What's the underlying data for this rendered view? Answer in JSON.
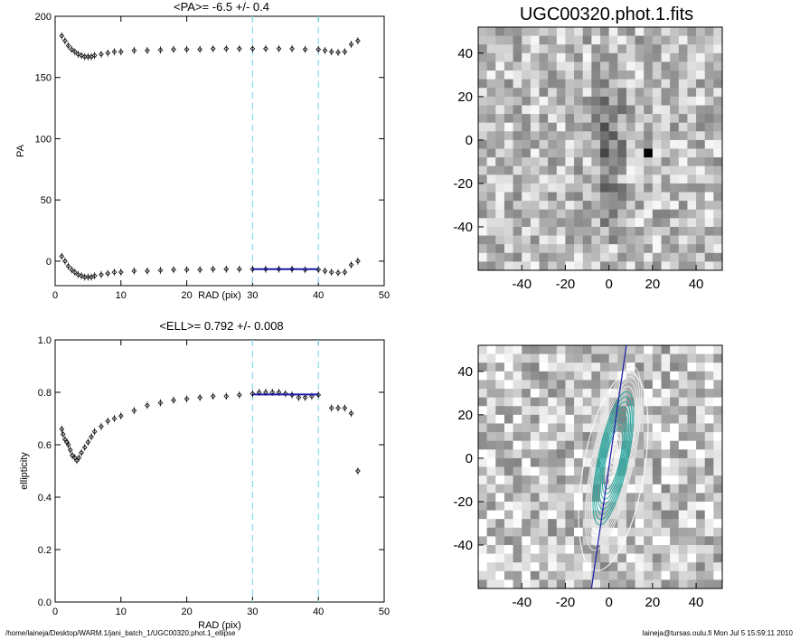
{
  "footer": {
    "path": "/home/laineja/Desktop/WARM.1/jani_batch_1/UGC00320.phot.1_ellipse",
    "user_stamp": "laineja@tursas.oulu.fi  Mon Jul  5 15:59:11 2010"
  },
  "chart_data": [
    {
      "type": "scatter",
      "title": "<PA>=  -6.5 +/-   0.4",
      "xlabel": "RAD (pix)",
      "ylabel": "PA",
      "xlim": [
        0,
        50
      ],
      "ylim": [
        -20,
        200
      ],
      "xticks": [
        0,
        10,
        20,
        30,
        40,
        50
      ],
      "yticks": [
        0,
        50,
        100,
        150,
        200
      ],
      "vlines": [
        30,
        40
      ],
      "series": [
        {
          "role": "points",
          "x": [
            1,
            1.5,
            2,
            2.5,
            3,
            3.5,
            4,
            4.5,
            5,
            5.5,
            6,
            7,
            8,
            9,
            10,
            12,
            14,
            16,
            18,
            20,
            22,
            24,
            26,
            28,
            30,
            32,
            34,
            36,
            38,
            40,
            41,
            42,
            43,
            44,
            45,
            46
          ],
          "y": [
            4,
            0,
            -4,
            -7,
            -9,
            -11,
            -12,
            -13,
            -13,
            -13,
            -12,
            -11,
            -10,
            -9,
            -9,
            -8,
            -8,
            -7.5,
            -7,
            -7,
            -7,
            -6.5,
            -6.5,
            -6.5,
            -6.5,
            -6.5,
            -6.5,
            -6.5,
            -7,
            -7,
            -8,
            -9,
            -9.5,
            -9,
            -3,
            0
          ]
        },
        {
          "role": "points",
          "x": [
            1,
            1.5,
            2,
            2.5,
            3,
            3.5,
            4,
            4.5,
            5,
            5.5,
            6,
            7,
            8,
            9,
            10,
            12,
            14,
            16,
            18,
            20,
            22,
            24,
            26,
            28,
            30,
            32,
            34,
            36,
            38,
            40,
            41,
            42,
            43,
            44,
            45,
            46
          ],
          "y": [
            184,
            180,
            176,
            173,
            171,
            169,
            168,
            167,
            167,
            167,
            168,
            169,
            170,
            171,
            171,
            172,
            172,
            172.5,
            173,
            173,
            173,
            173.5,
            173.5,
            173.5,
            173.5,
            173.5,
            173.5,
            173.5,
            173,
            173,
            172,
            171,
            170.5,
            171,
            177,
            180
          ]
        },
        {
          "role": "fit",
          "x": [
            30,
            40
          ],
          "y": [
            -6.5,
            -6.5
          ]
        }
      ]
    },
    {
      "type": "scatter",
      "title": "<ELL>= 0.792 +/-  0.008",
      "xlabel": "RAD (pix)",
      "ylabel": "ellipticity",
      "xlim": [
        0,
        50
      ],
      "ylim": [
        0.0,
        1.0
      ],
      "xticks": [
        0,
        10,
        20,
        30,
        40,
        50
      ],
      "yticks": [
        "0.0",
        "0.2",
        "0.4",
        "0.6",
        "0.8",
        "1.0"
      ],
      "vlines": [
        30,
        40
      ],
      "series": [
        {
          "role": "points",
          "x": [
            1,
            1.2,
            1.5,
            1.8,
            2,
            2.3,
            2.6,
            3,
            3.3,
            3.6,
            4,
            4.5,
            5,
            5.5,
            6,
            7,
            8,
            9,
            10,
            12,
            14,
            16,
            18,
            20,
            22,
            24,
            26,
            28,
            30,
            31,
            32,
            33,
            34,
            35,
            36,
            37,
            38,
            39,
            40,
            42,
            43,
            44,
            45,
            46
          ],
          "y": [
            0.66,
            0.64,
            0.62,
            0.61,
            0.6,
            0.58,
            0.56,
            0.55,
            0.54,
            0.55,
            0.57,
            0.59,
            0.61,
            0.63,
            0.65,
            0.67,
            0.69,
            0.7,
            0.71,
            0.73,
            0.75,
            0.76,
            0.77,
            0.775,
            0.78,
            0.785,
            0.785,
            0.79,
            0.795,
            0.8,
            0.8,
            0.8,
            0.8,
            0.795,
            0.79,
            0.78,
            0.78,
            0.785,
            0.79,
            0.74,
            0.74,
            0.74,
            0.72,
            0.5
          ]
        },
        {
          "role": "fit",
          "x": [
            30,
            40
          ],
          "y": [
            0.792,
            0.792
          ]
        }
      ]
    },
    {
      "type": "heatmap",
      "title": "UGC00320.phot.1.fits",
      "xlim": [
        -60,
        52
      ],
      "ylim": [
        -60,
        52
      ],
      "xticks": [
        -40,
        -20,
        0,
        20,
        40
      ],
      "yticks": [
        -40,
        -20,
        0,
        20,
        40
      ],
      "colormap": "grayscale"
    },
    {
      "type": "heatmap",
      "title": "",
      "xlim": [
        -60,
        52
      ],
      "ylim": [
        -60,
        52
      ],
      "xticks": [
        -40,
        -20,
        0,
        20,
        40
      ],
      "yticks": [
        -40,
        -20,
        0,
        20,
        40
      ],
      "colormap": "grayscale",
      "overlay": "ellipse-isophotes"
    }
  ]
}
